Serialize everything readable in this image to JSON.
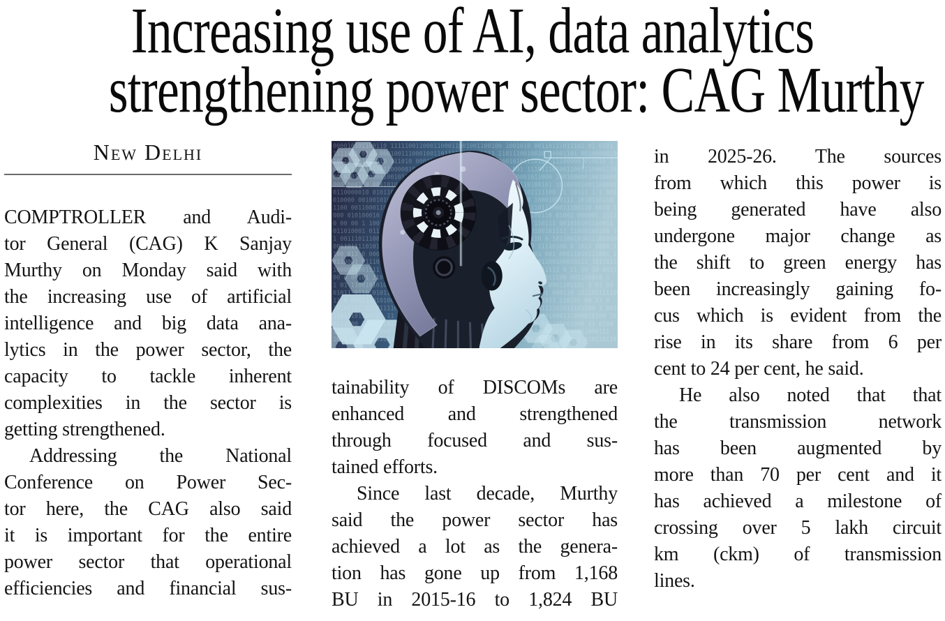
{
  "page_title": "Increasing use of AI, data analytics strengthening power sector: CAG Murthy",
  "headline": {
    "lines": [
      "Increasing use of AI, data analytics",
      "strengthening power sector: CAG Murthy"
    ]
  },
  "dateline": "New Delhi",
  "photo": {
    "alt": "Illustration of a humanoid robot head in profile facing right, with exposed mechanical gear brain, overlaid with binary code, hexagon outlines and circuit lines on a dark-blue to light-teal gradient background",
    "palette": {
      "background_left": "#262640",
      "background_mid": "#3a5f80",
      "background_right": "#aac8d4",
      "accent_cyan": "#cdeaf2",
      "face": "#e9f5fa",
      "cranium": "#9fa1bf",
      "machinery": "#10101a"
    }
  },
  "article": {
    "columns": [
      {
        "id": "left",
        "paragraphs": [
          {
            "indent": false,
            "justify_last": false,
            "lines": [
              "COMPTROLLER and Audi-",
              "tor General (CAG) K Sanjay",
              "Murthy on Monday said with",
              "the increasing use of artificial",
              "intelligence and big data ana-",
              "lytics in the power sector, the",
              "capacity to tackle inherent",
              "complexities in the sector is",
              "getting strengthened."
            ]
          },
          {
            "indent": true,
            "justify_last": true,
            "lines": [
              "Addressing the National",
              "Conference on Power Sec-",
              "tor here, the CAG also said",
              "it is important for the entire",
              "power sector that operational",
              "efficiencies and financial sus-"
            ]
          }
        ]
      },
      {
        "id": "middle",
        "paragraphs": [
          {
            "indent": false,
            "justify_last": false,
            "lines": [
              "tainability of DISCOMs are",
              "enhanced and strengthened",
              "through focused and sus-",
              "tained efforts."
            ]
          },
          {
            "indent": true,
            "justify_last": true,
            "lines": [
              "Since last decade, Murthy",
              "said the power sector has",
              "achieved a lot as the genera-",
              "tion has gone up from 1,168",
              "BU in 2015-16 to 1,824 BU"
            ]
          }
        ]
      },
      {
        "id": "right",
        "paragraphs": [
          {
            "indent": false,
            "justify_last": false,
            "lines": [
              "in 2025-26. The sources",
              "from which this power is",
              "being generated have also",
              "undergone major change as",
              "the shift to green energy has",
              "been increasingly gaining fo-",
              "cus which is evident from the",
              "rise in its share from 6 per",
              "cent to 24 per cent, he said."
            ]
          },
          {
            "indent": true,
            "justify_last": false,
            "lines": [
              "He also noted that that",
              "the transmission network",
              "has been augmented by",
              "more than 70 per cent and it",
              "has achieved a milestone of",
              "crossing over 5 lakh circuit",
              "km (ckm) of transmission",
              "lines."
            ]
          }
        ]
      }
    ]
  }
}
